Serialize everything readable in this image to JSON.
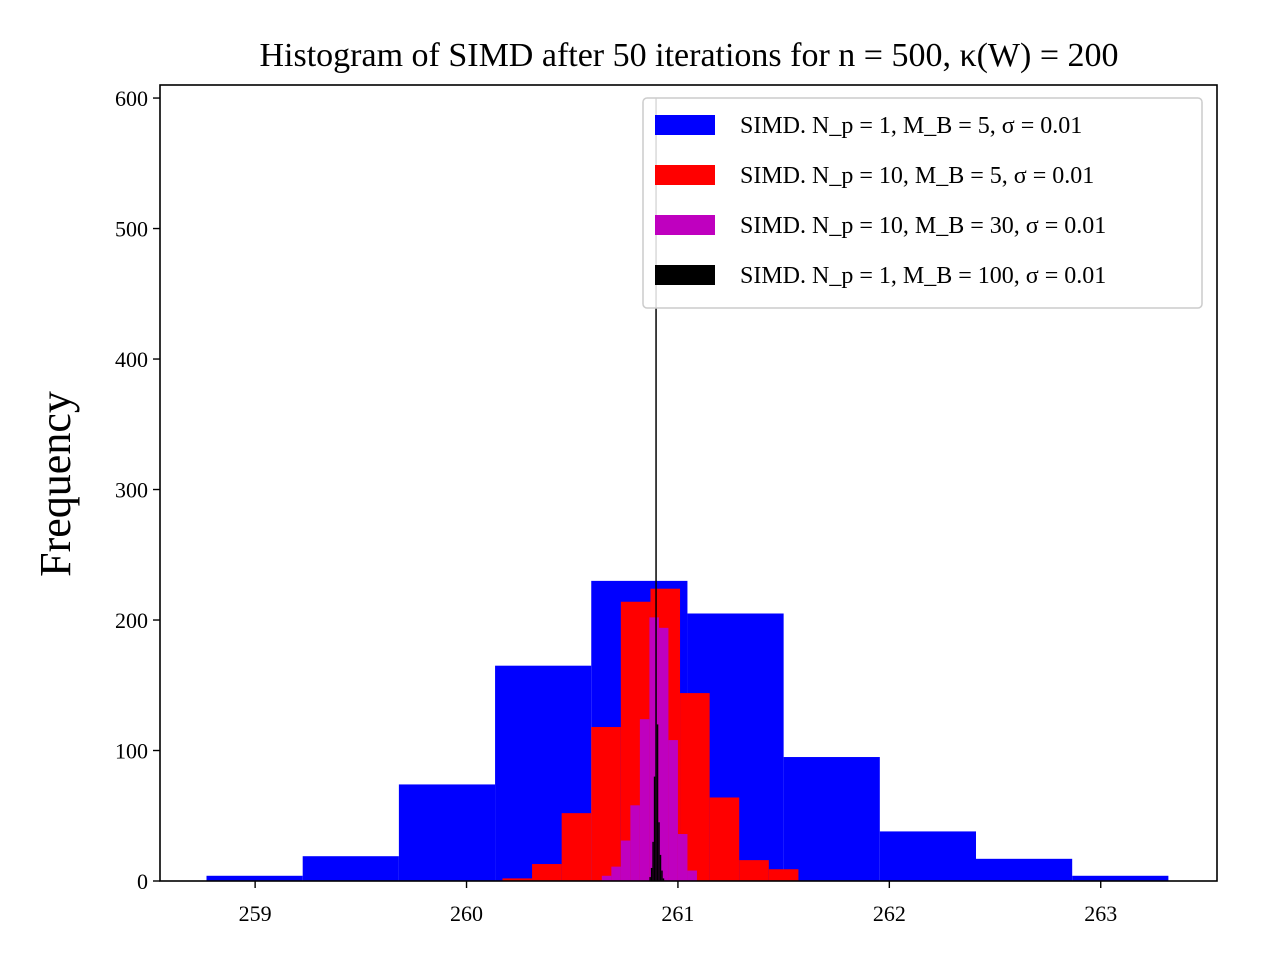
{
  "chart_data": {
    "type": "bar",
    "title": "Histogram of SIMD after 50 iterations for n = 500, κ(W) = 200",
    "xlabel": "",
    "ylabel": "Frequency",
    "xlim": [
      258.55,
      263.55
    ],
    "ylim": [
      0,
      610
    ],
    "xticks": [
      259,
      260,
      261,
      262,
      263
    ],
    "yticks": [
      0,
      100,
      200,
      300,
      400,
      500,
      600
    ],
    "grid": false,
    "legend_position": "top-right",
    "series": [
      {
        "name": "SIMD. N_p =   1, M_B = 5, σ = 0.01",
        "color": "#0000ff",
        "bin_edges": [
          258.77,
          259.225,
          259.68,
          260.135,
          260.59,
          261.045,
          261.5,
          261.955,
          262.41,
          262.865,
          263.32
        ],
        "counts": [
          4,
          19,
          74,
          165,
          230,
          205,
          95,
          38,
          17,
          4
        ]
      },
      {
        "name": "SIMD. N_p =  10, M_B = 5, σ = 0.01",
        "color": "#ff0000",
        "bin_edges": [
          260.17,
          260.31,
          260.45,
          260.59,
          260.73,
          260.87,
          261.01,
          261.15,
          261.29,
          261.43,
          261.57
        ],
        "counts": [
          2,
          13,
          52,
          118,
          214,
          224,
          144,
          64,
          16,
          9
        ]
      },
      {
        "name": "SIMD. N_p =  10, M_B = 30, σ = 0.01",
        "color": "#bf00bf",
        "bin_edges": [
          260.64,
          260.685,
          260.73,
          260.775,
          260.82,
          260.865,
          260.91,
          260.955,
          261.0,
          261.045,
          261.09
        ],
        "counts": [
          4,
          11,
          31,
          58,
          124,
          202,
          194,
          108,
          36,
          8
        ]
      },
      {
        "name": "SIMD. N_p =   1, M_B = 100, σ = 0.01",
        "color": "#000000",
        "bin_edges": [
          260.865,
          260.872,
          260.879,
          260.886,
          260.893,
          260.9,
          260.907,
          260.914,
          260.921,
          260.928,
          260.935
        ],
        "counts": [
          3,
          10,
          30,
          80,
          600,
          120,
          45,
          20,
          8,
          2
        ]
      }
    ]
  }
}
